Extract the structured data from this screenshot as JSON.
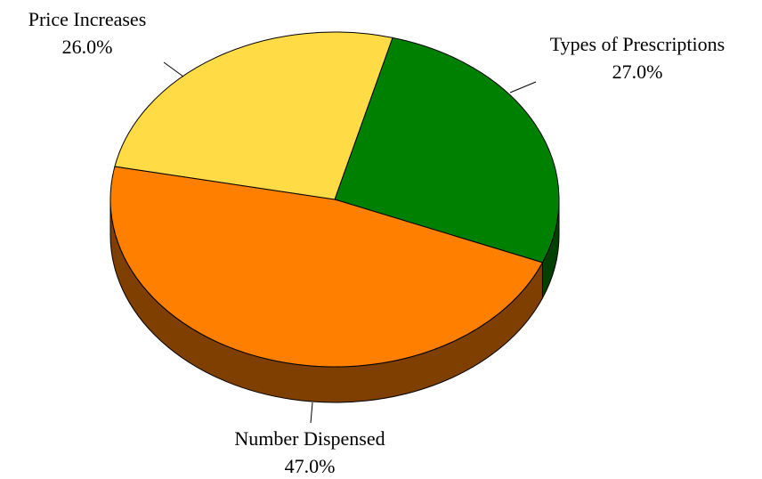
{
  "chart_data": {
    "type": "pie",
    "style": "3d",
    "title": "",
    "slices": [
      {
        "label": "Types of Prescriptions",
        "value": 27.0,
        "value_label": "27.0%",
        "color": "#008000",
        "side_color": "#004000"
      },
      {
        "label": "Number Dispensed",
        "value": 47.0,
        "value_label": "47.0%",
        "color": "#ff7f00",
        "side_color": "#7f3f00"
      },
      {
        "label": "Price Increases",
        "value": 26.0,
        "value_label": "26.0%",
        "color": "#ffdc46",
        "side_color": "#7f6e23"
      }
    ],
    "legend": "none",
    "label_position": "outside with leader lines"
  }
}
